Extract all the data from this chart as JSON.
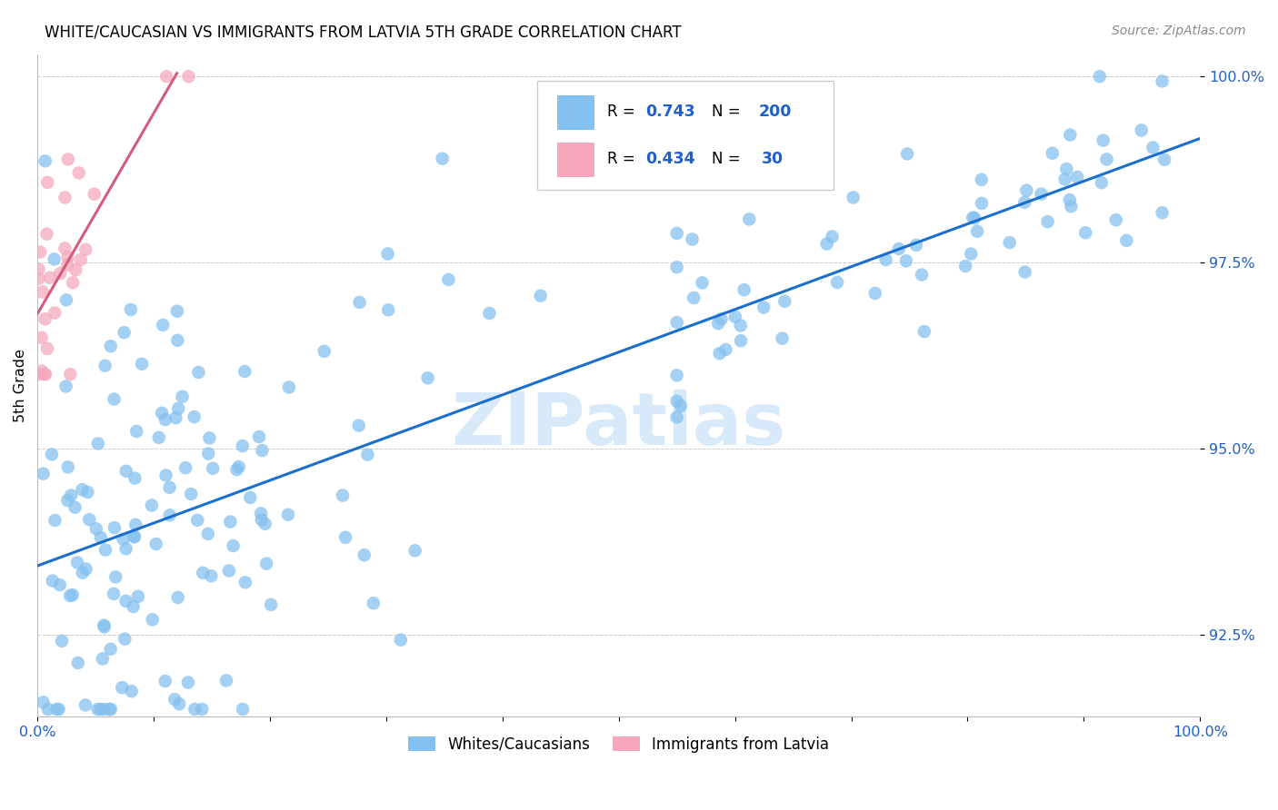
{
  "title": "WHITE/CAUCASIAN VS IMMIGRANTS FROM LATVIA 5TH GRADE CORRELATION CHART",
  "source": "Source: ZipAtlas.com",
  "ylabel": "5th Grade",
  "xlim": [
    0,
    1
  ],
  "ylim": [
    0.914,
    1.003
  ],
  "yticks": [
    0.925,
    0.95,
    0.975,
    1.0
  ],
  "ytick_labels": [
    "92.5%",
    "95.0%",
    "97.5%",
    "100.0%"
  ],
  "xtick_vals": [
    0.0,
    0.1,
    0.2,
    0.3,
    0.4,
    0.5,
    0.6,
    0.7,
    0.8,
    0.9,
    1.0
  ],
  "xtick_labels": [
    "0.0%",
    "",
    "",
    "",
    "",
    "",
    "",
    "",
    "",
    "",
    "100.0%"
  ],
  "blue_R": 0.743,
  "blue_N": 200,
  "pink_R": 0.434,
  "pink_N": 30,
  "blue_color": "#85c1f0",
  "pink_color": "#f5a8bc",
  "blue_line_color": "#1a6fcc",
  "pink_line_color": "#d45c7a",
  "watermark": "ZIPatlas",
  "legend_label_blue": "Whites/Caucasians",
  "legend_label_pink": "Immigrants from Latvia",
  "blue_line_x0": 0.0,
  "blue_line_y0": 0.935,
  "blue_line_x1": 1.0,
  "blue_line_y1": 0.993,
  "pink_line_x0": 0.0,
  "pink_line_y0": 0.97,
  "pink_line_x1": 0.12,
  "pink_line_y1": 0.9995
}
